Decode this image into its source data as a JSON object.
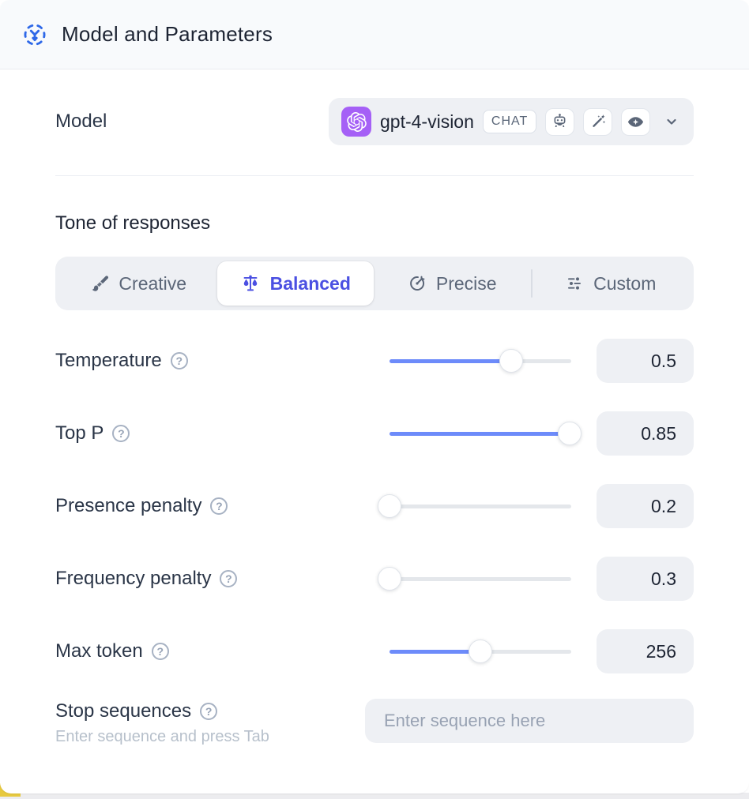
{
  "header": {
    "title": "Model and Parameters"
  },
  "model_row": {
    "label": "Model",
    "selected_model": "gpt-4-vision",
    "type_badge": "CHAT",
    "capability_icons": [
      "robot-icon",
      "magic-wand-icon",
      "vision-eye-icon"
    ],
    "provider_icon": "openai-logo"
  },
  "tone": {
    "heading": "Tone of responses",
    "options": [
      {
        "label": "Creative",
        "icon": "paintbrush-icon",
        "selected": false
      },
      {
        "label": "Balanced",
        "icon": "balance-scale-icon",
        "selected": true
      },
      {
        "label": "Precise",
        "icon": "target-arrow-icon",
        "selected": false
      },
      {
        "label": "Custom",
        "icon": "sliders-icon",
        "selected": false
      }
    ]
  },
  "params": [
    {
      "label": "Temperature",
      "value": "0.5",
      "percent": 67
    },
    {
      "label": "Top P",
      "value": "0.85",
      "percent": 99
    },
    {
      "label": "Presence penalty",
      "value": "0.2",
      "percent": 0
    },
    {
      "label": "Frequency penalty",
      "value": "0.3",
      "percent": 0
    },
    {
      "label": "Max token",
      "value": "256",
      "percent": 50
    }
  ],
  "stop_sequences": {
    "label": "Stop sequences",
    "hint": "Enter sequence and press Tab",
    "placeholder": "Enter sequence here"
  },
  "help_glyph": "?",
  "colors": {
    "accent": "#4b50e2",
    "slider-blue": "#6d8bfa",
    "provider": "#a560f6",
    "icon-blue": "#2e68e8",
    "corner-yellow": "#e7c93f",
    "control-bg": "#eef0f4",
    "text-dark": "#1d2433",
    "text-label": "#2a3547"
  }
}
